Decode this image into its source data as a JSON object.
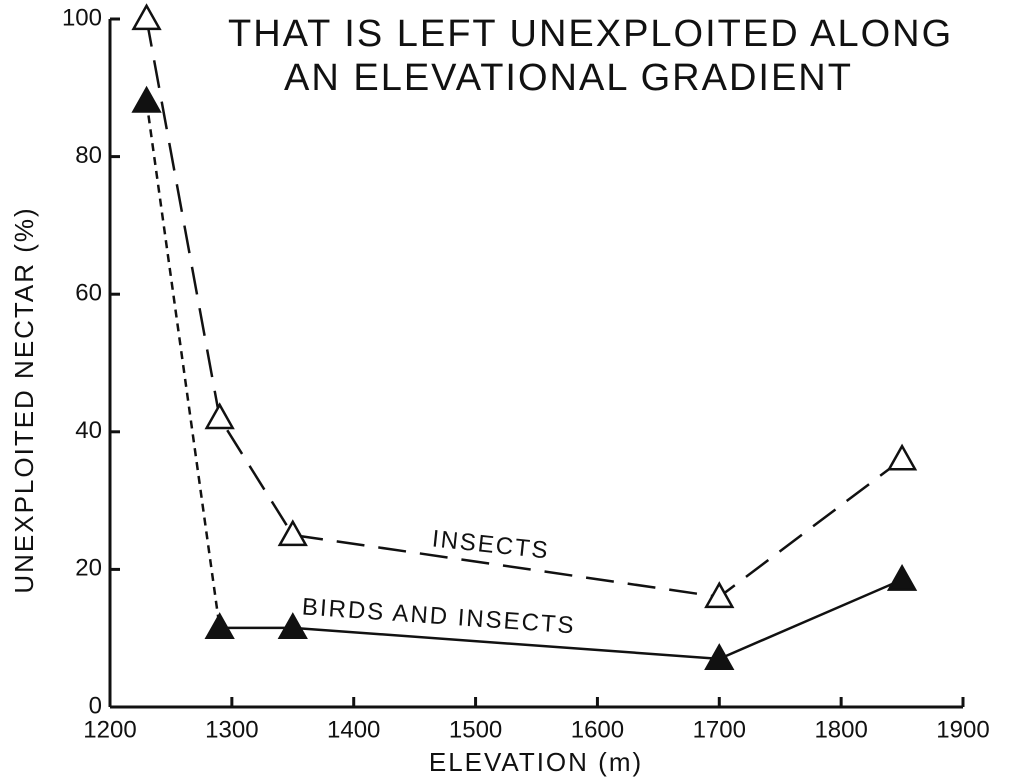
{
  "chart_data": {
    "type": "line",
    "title": [
      "THAT IS LEFT UNEXPLOITED ALONG",
      "AN ELEVATIONAL GRADIENT"
    ],
    "x_label": "ELEVATION (m)",
    "y_label": "UNEXPLOITED NECTAR (%)",
    "annotations": [
      "INSECTS",
      "BIRDS AND INSECTS"
    ],
    "x": [
      1230,
      1290,
      1350,
      1700,
      1850
    ],
    "series": [
      {
        "name": "INSECTS",
        "color": "#111111",
        "marker": "open-triangle",
        "segment_styles": [
          "long-dash",
          "long-dash",
          "long-dash",
          "long-dash"
        ],
        "values": [
          100,
          42,
          25,
          16,
          36
        ]
      },
      {
        "name": "BIRDS AND INSECTS",
        "color": "#111111",
        "marker": "filled-triangle",
        "segment_styles": [
          "short-dash",
          "solid",
          "solid",
          "solid"
        ],
        "values": [
          88,
          11.5,
          11.5,
          7,
          18.5
        ]
      }
    ],
    "xlim": [
      1200,
      1900
    ],
    "xticks": [
      1200,
      1300,
      1400,
      1500,
      1600,
      1700,
      1800,
      1900
    ],
    "ylim": [
      0,
      100
    ],
    "yticks": [
      0,
      20,
      40,
      60,
      80,
      100
    ],
    "grid": false
  }
}
